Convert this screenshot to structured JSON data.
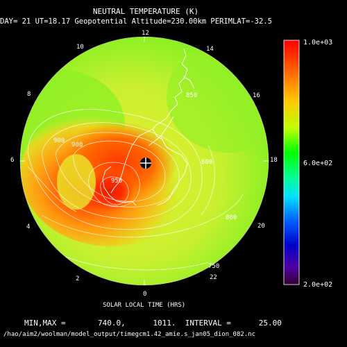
{
  "title": "NEUTRAL TEMPERATURE (K)",
  "subtitle": "DAY= 21 UT=18.17 Geopotential Altitude=230.00km PERIMLAT=-32.5",
  "local_time_labels": [
    {
      "text": "12"
    },
    {
      "text": "14"
    },
    {
      "text": "16"
    },
    {
      "text": "18"
    },
    {
      "text": "20"
    },
    {
      "text": "22"
    },
    {
      "text": "0"
    },
    {
      "text": "2"
    },
    {
      "text": "4"
    },
    {
      "text": "6"
    },
    {
      "text": "8"
    },
    {
      "text": "10"
    }
  ],
  "xaxis_label": "SOLAR LOCAL TIME (HRS)",
  "stats": "MIN,MAX =       740.0,      1011.  INTERVAL =      25.00",
  "filepath": "/hao/aim2/woolman/model_output/timegcm1.42_amie.s_jan05_dion_082.nc",
  "colorbar": {
    "max_label": "1.0e+03",
    "mid_label": "6.0e+02",
    "min_label": "2.0e+02",
    "range": [
      200,
      1000
    ]
  },
  "contour_labels": [
    "900",
    "900",
    "950",
    "850",
    "800",
    "800",
    "750"
  ],
  "colors": {
    "background": "#000000",
    "field_low": "#c8ff40",
    "field_high": "#ff2000"
  }
}
